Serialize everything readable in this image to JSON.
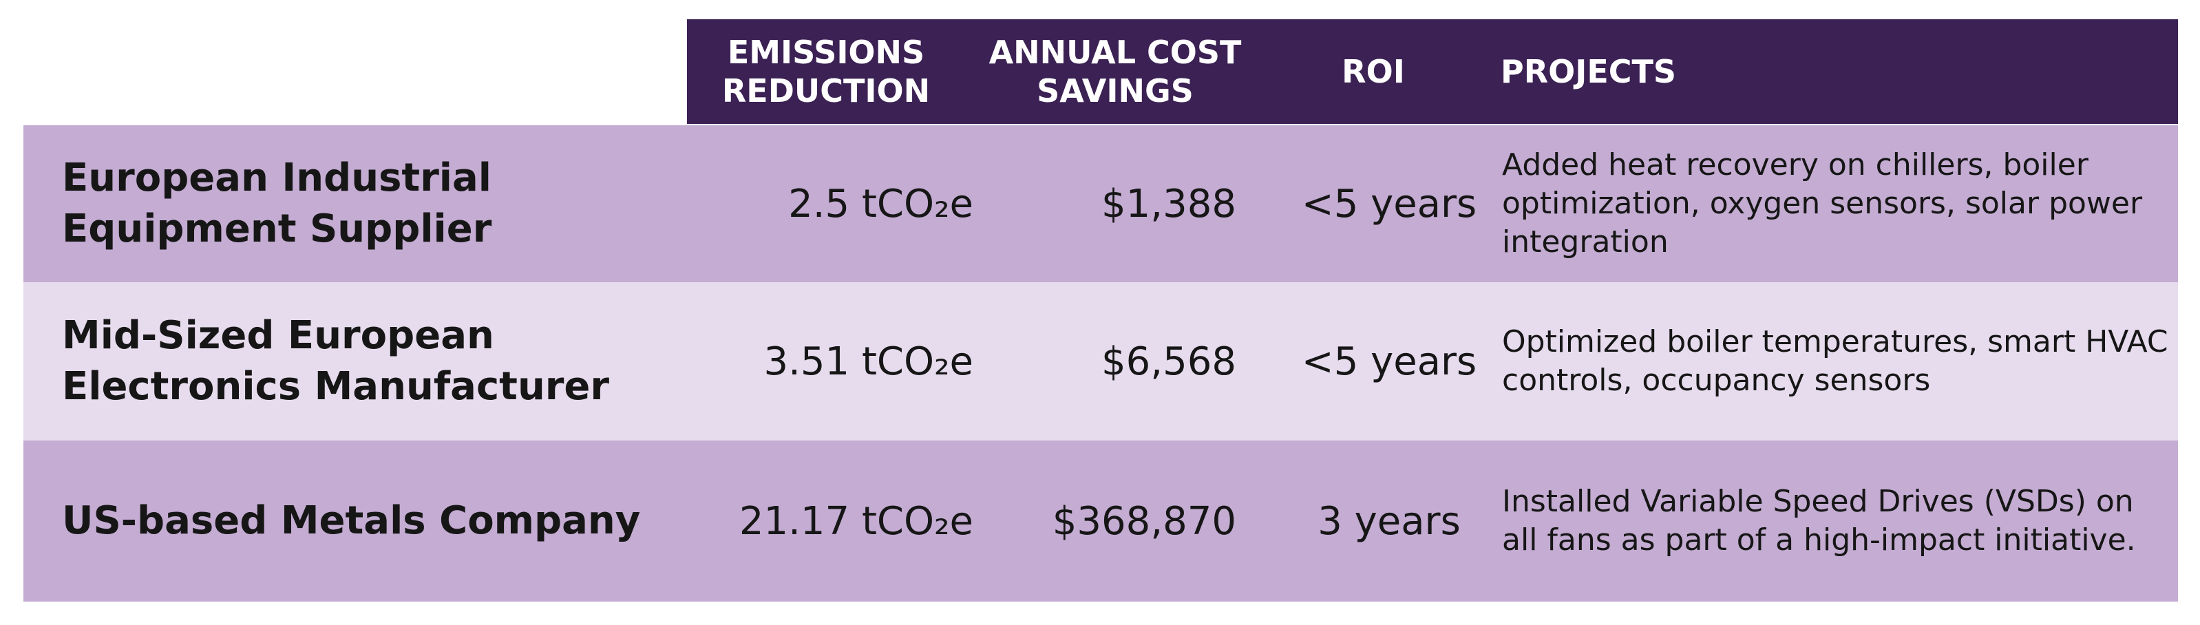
{
  "header": {
    "emissions": "EMISSIONS REDUCTION",
    "annual_cost": "ANNUAL COST SAVINGS",
    "roi": "ROI",
    "projects": "PROJECTS"
  },
  "rows": [
    {
      "company": "European Industrial Equipment Supplier",
      "emissions": "2.5 tCO₂e",
      "savings": "$1,388",
      "roi": "<5 years",
      "projects": "Added heat recovery on chillers, boiler optimization, oxygen sensors, solar power integration"
    },
    {
      "company": "Mid-Sized European Electronics Manufacturer",
      "emissions": "3.51 tCO₂e",
      "savings": "$6,568",
      "roi": "<5 years",
      "projects": "Optimized boiler temperatures, smart HVAC controls, occupancy sensors"
    },
    {
      "company": "US-based Metals Company",
      "emissions": "21.17 tCO₂e",
      "savings": "$368,870",
      "roi": "3 years",
      "projects": "Installed Variable Speed Drives (VSDs) on all fans as part of a high-impact initiative."
    }
  ],
  "colors": {
    "header_bg": "#3b2154",
    "row_dark": "#c4acd2",
    "row_light": "#e7dcee"
  }
}
